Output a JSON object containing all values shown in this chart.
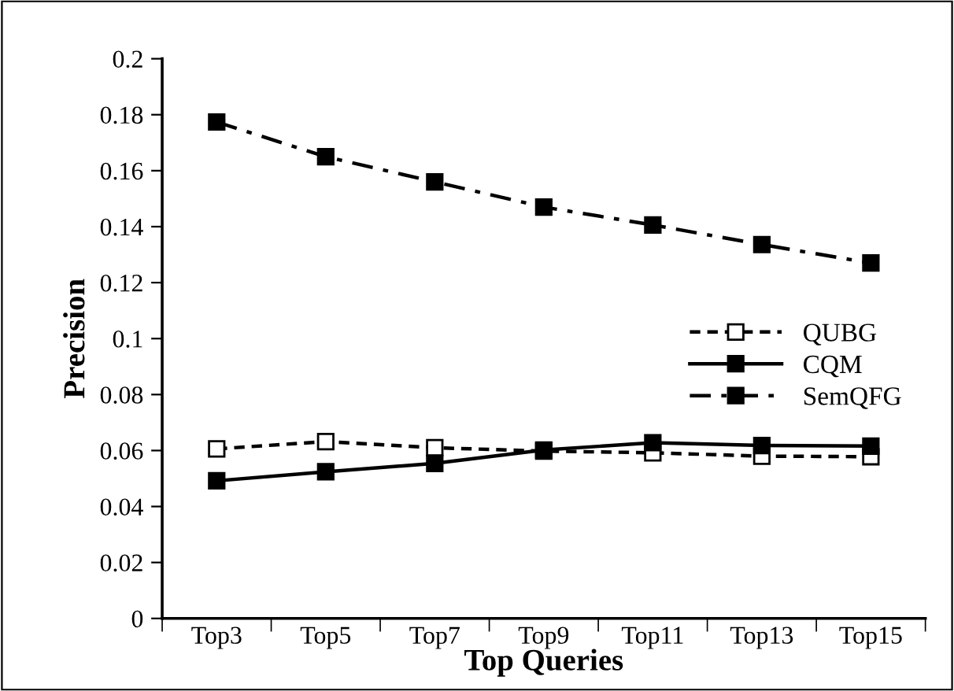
{
  "chart_data": {
    "type": "line",
    "xlabel": "Top Queries",
    "ylabel": "Precision",
    "categories": [
      "Top3",
      "Top5",
      "Top7",
      "Top9",
      "Top11",
      "Top13",
      "Top15"
    ],
    "series": [
      {
        "name": "QUBG",
        "color": "#000000",
        "values": [
          0.0606,
          0.0632,
          0.061,
          0.0598,
          0.0592,
          0.058,
          0.0578
        ],
        "line_style": "dashed",
        "marker": "square"
      },
      {
        "name": "CQM",
        "color": "#000000",
        "values": [
          0.0492,
          0.0524,
          0.0554,
          0.0602,
          0.0628,
          0.0618,
          0.0616
        ],
        "line_style": "solid",
        "marker": "square"
      },
      {
        "name": "SemQFG",
        "color": "#000000",
        "values": [
          0.1774,
          0.165,
          0.156,
          0.147,
          0.1406,
          0.1336,
          0.127
        ],
        "line_style": "dashdot",
        "marker": "square"
      }
    ],
    "ylim": [
      0,
      0.2
    ],
    "yticks": [
      0,
      0.02,
      0.04,
      0.06,
      0.08,
      0.1,
      0.12,
      0.14,
      0.16,
      0.18,
      0.2
    ],
    "grid": false,
    "legend": "right"
  }
}
